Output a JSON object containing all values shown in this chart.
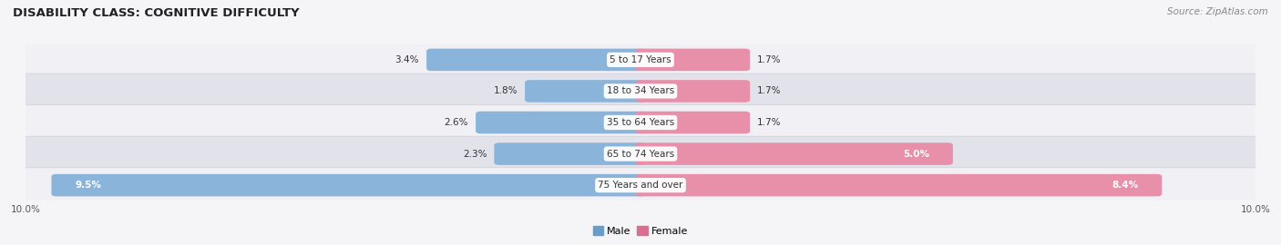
{
  "title": "DISABILITY CLASS: COGNITIVE DIFFICULTY",
  "source": "Source: ZipAtlas.com",
  "categories": [
    "5 to 17 Years",
    "18 to 34 Years",
    "35 to 64 Years",
    "65 to 74 Years",
    "75 Years and over"
  ],
  "male_values": [
    3.4,
    1.8,
    2.6,
    2.3,
    9.5
  ],
  "female_values": [
    1.7,
    1.7,
    1.7,
    5.0,
    8.4
  ],
  "max_val": 10.0,
  "male_color": "#8ab4d9",
  "female_color": "#e88faa",
  "row_bg_light": "#f0f0f5",
  "row_bg_dark": "#e2e2ea",
  "row_border": "#d0d0da",
  "label_color": "#333333",
  "axis_label_color": "#555555",
  "title_color": "#222222",
  "fig_bg": "#f5f5f8",
  "legend_male_color": "#6a9cc8",
  "legend_female_color": "#d96f8f",
  "value_fontsize": 7.5,
  "cat_fontsize": 7.5,
  "title_fontsize": 9.5,
  "source_fontsize": 7.5,
  "legend_fontsize": 8.0
}
